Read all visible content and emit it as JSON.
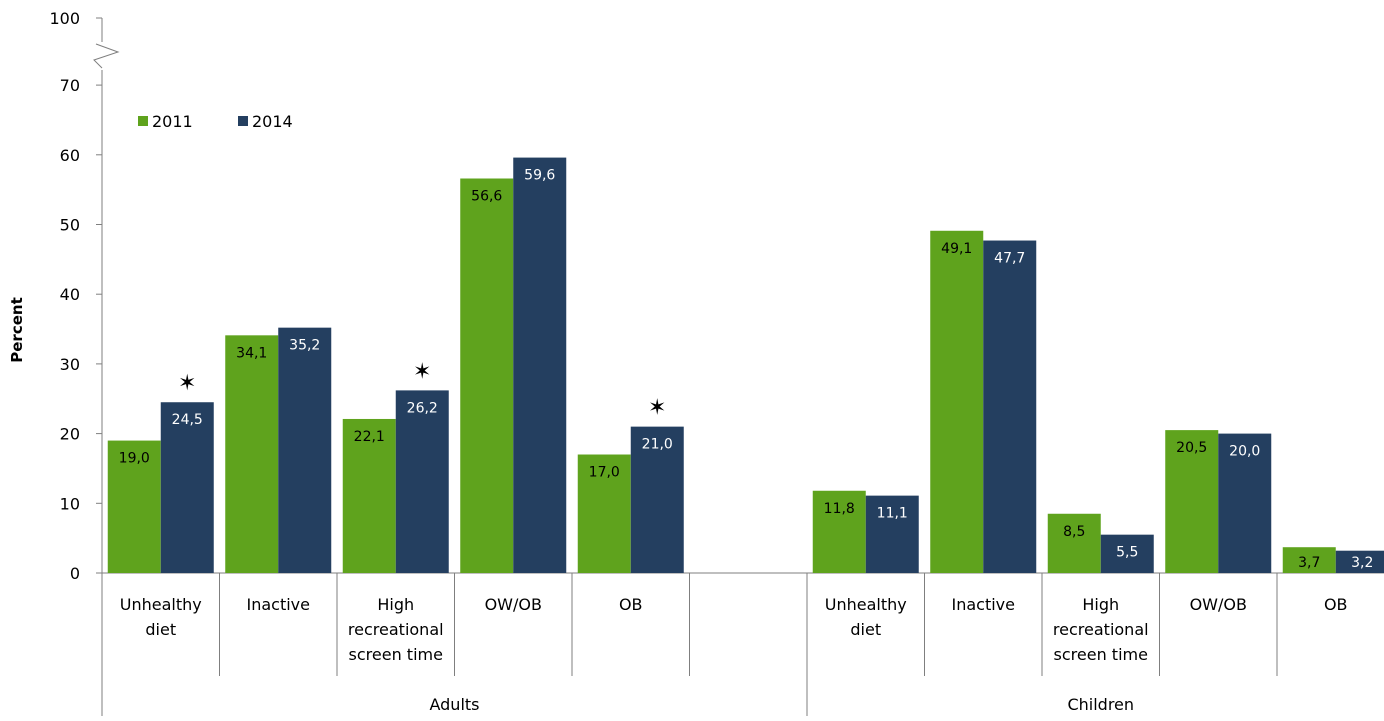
{
  "chart_data": {
    "type": "bar",
    "ylabel": "Percent",
    "y_ticks": [
      "0",
      "10",
      "20",
      "30",
      "40",
      "50",
      "60",
      "70",
      "100"
    ],
    "ylim": [
      0,
      70
    ],
    "axis_break": {
      "between": [
        70,
        100
      ]
    },
    "groups": [
      {
        "name": "Adults",
        "categories": [
          [
            "Unhealthy",
            "diet"
          ],
          [
            "Inactive"
          ],
          [
            "High",
            "recreational",
            "screen time"
          ],
          [
            "OW/OB"
          ],
          [
            "OB"
          ]
        ]
      },
      {
        "name": "Children",
        "categories": [
          [
            "Unhealthy",
            "diet"
          ],
          [
            "Inactive"
          ],
          [
            "High",
            "recreational",
            "screen time"
          ],
          [
            "OW/OB"
          ],
          [
            "OB"
          ]
        ]
      }
    ],
    "series": [
      {
        "name": "2011",
        "color": "#5fa31d",
        "values": [
          19.0,
          34.1,
          22.1,
          56.6,
          17.0,
          11.8,
          49.1,
          8.5,
          20.5,
          3.7
        ],
        "labels": [
          "19,0",
          "34,1",
          "22,1",
          "56,6",
          "17,0",
          "11,8",
          "49,1",
          "8,5",
          "20,5",
          "3,7"
        ]
      },
      {
        "name": "2014",
        "color": "#243f60",
        "values": [
          24.5,
          35.2,
          26.2,
          59.6,
          21.0,
          11.1,
          47.7,
          5.5,
          20.0,
          3.2
        ],
        "labels": [
          "24,5",
          "35,2",
          "26,2",
          "59,6",
          "21,0",
          "11,1",
          "47,7",
          "5,5",
          "20,0",
          "3,2"
        ]
      }
    ],
    "significance_marker": "✶",
    "significant_categories": [
      0,
      2,
      4
    ],
    "legend_position": "top-left",
    "grid": false
  }
}
